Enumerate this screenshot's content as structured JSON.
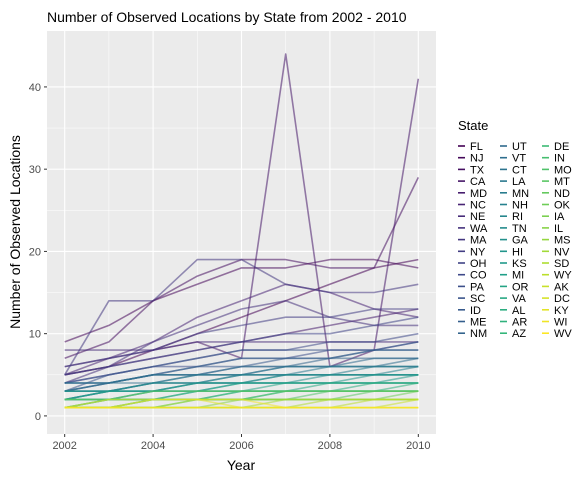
{
  "chart_data": {
    "type": "line",
    "title": "Number of Observed Locations by State from 2002 - 2010",
    "xlabel": "Year",
    "ylabel": "Number of Observed Locations",
    "xlim": [
      2002,
      2010
    ],
    "ylim": [
      0,
      45
    ],
    "x_ticks": [
      2002,
      2004,
      2006,
      2008,
      2010
    ],
    "y_ticks": [
      0,
      10,
      20,
      30,
      40
    ],
    "grid": true,
    "background": "#ebebeb",
    "legend_title": "State",
    "legend_position": "right",
    "x": [
      2002,
      2003,
      2004,
      2005,
      2006,
      2007,
      2008,
      2009,
      2010
    ],
    "series": [
      {
        "name": "FL",
        "values": [
          5,
          6,
          8,
          10,
          12,
          14,
          16,
          18,
          19
        ]
      },
      {
        "name": "NJ",
        "values": [
          9,
          11,
          14,
          16,
          18,
          18,
          19,
          19,
          18
        ]
      },
      {
        "name": "TX",
        "values": [
          7,
          9,
          14,
          17,
          19,
          19,
          18,
          18,
          29
        ]
      },
      {
        "name": "CA",
        "values": [
          6,
          7,
          8,
          9,
          7,
          44,
          6,
          8,
          41
        ]
      },
      {
        "name": "MD",
        "values": [
          5,
          6,
          7,
          8,
          9,
          10,
          11,
          12,
          13
        ]
      },
      {
        "name": "NC",
        "values": [
          5,
          7,
          9,
          12,
          14,
          16,
          15,
          13,
          12
        ]
      },
      {
        "name": "NE",
        "values": [
          8,
          8,
          8,
          9,
          9,
          9,
          9,
          9,
          9
        ]
      },
      {
        "name": "WA",
        "values": [
          4,
          6,
          9,
          11,
          13,
          14,
          12,
          11,
          11
        ]
      },
      {
        "name": "MA",
        "values": [
          5,
          14,
          14,
          19,
          19,
          16,
          15,
          15,
          16
        ]
      },
      {
        "name": "NY",
        "values": [
          6,
          7,
          8,
          10,
          11,
          12,
          12,
          13,
          13
        ]
      },
      {
        "name": "OH",
        "values": [
          5,
          6,
          7,
          8,
          9,
          10,
          10,
          11,
          12
        ]
      },
      {
        "name": "CO",
        "values": [
          4,
          5,
          6,
          7,
          8,
          8,
          9,
          9,
          10
        ]
      },
      {
        "name": "PA",
        "values": [
          4,
          5,
          6,
          6,
          7,
          7,
          8,
          8,
          9
        ]
      },
      {
        "name": "SC",
        "values": [
          3,
          5,
          6,
          7,
          8,
          8,
          8,
          8,
          9
        ]
      },
      {
        "name": "ID",
        "values": [
          4,
          4,
          5,
          6,
          6,
          7,
          7,
          8,
          8
        ]
      },
      {
        "name": "ME",
        "values": [
          3,
          4,
          5,
          6,
          7,
          7,
          7,
          8,
          8
        ]
      },
      {
        "name": "NM",
        "values": [
          3,
          4,
          5,
          5,
          6,
          6,
          7,
          7,
          7
        ]
      },
      {
        "name": "UT",
        "values": [
          4,
          4,
          5,
          5,
          6,
          6,
          6,
          7,
          7
        ]
      },
      {
        "name": "VT",
        "values": [
          3,
          4,
          4,
          5,
          5,
          6,
          6,
          6,
          7
        ]
      },
      {
        "name": "CT",
        "values": [
          4,
          4,
          5,
          5,
          5,
          6,
          6,
          6,
          6
        ]
      },
      {
        "name": "LA",
        "values": [
          3,
          3,
          4,
          5,
          5,
          5,
          6,
          6,
          6
        ]
      },
      {
        "name": "MN",
        "values": [
          2,
          3,
          4,
          4,
          5,
          5,
          5,
          6,
          6
        ]
      },
      {
        "name": "NH",
        "values": [
          3,
          3,
          4,
          4,
          5,
          5,
          5,
          5,
          6
        ]
      },
      {
        "name": "RI",
        "values": [
          2,
          3,
          3,
          4,
          4,
          5,
          5,
          5,
          5
        ]
      },
      {
        "name": "TN",
        "values": [
          3,
          3,
          4,
          4,
          4,
          5,
          5,
          5,
          5
        ]
      },
      {
        "name": "GA",
        "values": [
          2,
          3,
          3,
          4,
          4,
          4,
          5,
          5,
          5
        ]
      },
      {
        "name": "HI",
        "values": [
          3,
          3,
          3,
          4,
          4,
          4,
          4,
          5,
          5
        ]
      },
      {
        "name": "KS",
        "values": [
          2,
          2,
          3,
          3,
          4,
          4,
          4,
          4,
          5
        ]
      },
      {
        "name": "MI",
        "values": [
          2,
          3,
          3,
          3,
          4,
          4,
          4,
          4,
          4
        ]
      },
      {
        "name": "OR",
        "values": [
          2,
          2,
          3,
          3,
          3,
          4,
          4,
          4,
          4
        ]
      },
      {
        "name": "VA",
        "values": [
          2,
          2,
          2,
          3,
          3,
          3,
          4,
          4,
          4
        ]
      },
      {
        "name": "AL",
        "values": [
          1,
          2,
          2,
          3,
          3,
          3,
          3,
          4,
          4
        ]
      },
      {
        "name": "AR",
        "values": [
          2,
          2,
          2,
          2,
          3,
          3,
          3,
          3,
          4
        ]
      },
      {
        "name": "AZ",
        "values": [
          1,
          2,
          2,
          2,
          3,
          3,
          3,
          3,
          3
        ]
      },
      {
        "name": "DE",
        "values": [
          1,
          1,
          2,
          2,
          2,
          3,
          3,
          3,
          3
        ]
      },
      {
        "name": "IN",
        "values": [
          2,
          2,
          2,
          2,
          2,
          3,
          3,
          3,
          3
        ]
      },
      {
        "name": "MO",
        "values": [
          1,
          1,
          2,
          2,
          2,
          2,
          3,
          3,
          3
        ]
      },
      {
        "name": "MT",
        "values": [
          1,
          2,
          2,
          2,
          2,
          2,
          2,
          3,
          3
        ]
      },
      {
        "name": "ND",
        "values": [
          2,
          2,
          3,
          3,
          3,
          3,
          3,
          3,
          3
        ]
      },
      {
        "name": "OK",
        "values": [
          1,
          1,
          1,
          2,
          2,
          2,
          2,
          2,
          3
        ]
      },
      {
        "name": "IA",
        "values": [
          1,
          1,
          2,
          2,
          2,
          2,
          2,
          2,
          2
        ]
      },
      {
        "name": "IL",
        "values": [
          1,
          1,
          1,
          1,
          2,
          2,
          2,
          2,
          2
        ]
      },
      {
        "name": "MS",
        "values": [
          1,
          1,
          1,
          2,
          2,
          2,
          2,
          2,
          2
        ]
      },
      {
        "name": "NV",
        "values": [
          1,
          1,
          1,
          1,
          1,
          2,
          2,
          2,
          2
        ]
      },
      {
        "name": "SD",
        "values": [
          1,
          1,
          1,
          1,
          1,
          1,
          2,
          2,
          2
        ]
      },
      {
        "name": "WY",
        "values": [
          1,
          1,
          1,
          1,
          1,
          1,
          1,
          2,
          2
        ]
      },
      {
        "name": "AK",
        "values": [
          1,
          1,
          1,
          1,
          1,
          1,
          1,
          1,
          2
        ]
      },
      {
        "name": "DC",
        "values": [
          1,
          1,
          1,
          1,
          1,
          1,
          1,
          1,
          1
        ]
      },
      {
        "name": "KY",
        "values": [
          1,
          2,
          2,
          2,
          1,
          1,
          1,
          1,
          1
        ]
      },
      {
        "name": "WI",
        "values": [
          1,
          1,
          2,
          2,
          2,
          1,
          1,
          1,
          1
        ]
      },
      {
        "name": "WV",
        "values": [
          1,
          1,
          1,
          1,
          1,
          1,
          1,
          1,
          1
        ]
      }
    ]
  }
}
